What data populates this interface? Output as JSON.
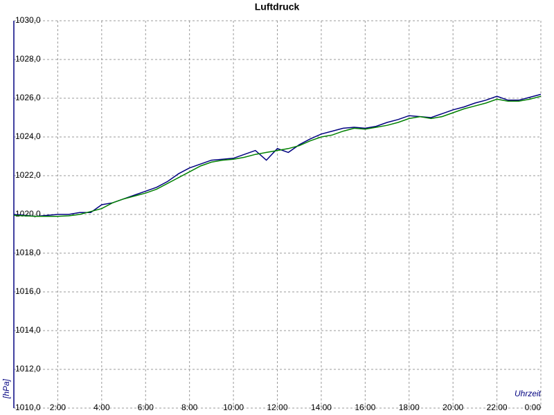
{
  "chart_data": {
    "type": "line",
    "title": "Luftdruck",
    "y_label": "[hPa]",
    "x_label": "Uhrzeit",
    "x": [
      0,
      0.5,
      1,
      1.5,
      2,
      2.5,
      3,
      3.5,
      4,
      4.5,
      5,
      5.5,
      6,
      6.5,
      7,
      7.5,
      8,
      8.5,
      9,
      9.5,
      10,
      10.5,
      11,
      11.5,
      12,
      12.5,
      13,
      13.5,
      14,
      14.5,
      15,
      15.5,
      16,
      16.5,
      17,
      17.5,
      18,
      18.5,
      19,
      19.5,
      20,
      20.5,
      21,
      21.5,
      22,
      22.5,
      23,
      23.5,
      24
    ],
    "series": [
      {
        "color": "#000080",
        "values": [
          1020.0,
          1019.95,
          1019.9,
          1019.95,
          1020.0,
          1020.0,
          1020.1,
          1020.1,
          1020.5,
          1020.6,
          1020.8,
          1021.0,
          1021.2,
          1021.4,
          1021.7,
          1022.1,
          1022.4,
          1022.6,
          1022.8,
          1022.85,
          1022.9,
          1023.1,
          1023.3,
          1022.8,
          1023.4,
          1023.2,
          1023.6,
          1023.9,
          1024.15,
          1024.3,
          1024.45,
          1024.5,
          1024.45,
          1024.55,
          1024.75,
          1024.9,
          1025.1,
          1025.05,
          1025.0,
          1025.2,
          1025.4,
          1025.55,
          1025.75,
          1025.9,
          1026.1,
          1025.9,
          1025.9,
          1026.05,
          1026.2
        ]
      },
      {
        "color": "#008000",
        "values": [
          1019.95,
          1019.93,
          1019.9,
          1019.9,
          1019.9,
          1019.93,
          1020.0,
          1020.15,
          1020.3,
          1020.6,
          1020.8,
          1020.95,
          1021.1,
          1021.3,
          1021.6,
          1021.9,
          1022.2,
          1022.5,
          1022.7,
          1022.8,
          1022.85,
          1022.95,
          1023.1,
          1023.2,
          1023.3,
          1023.4,
          1023.55,
          1023.8,
          1024.0,
          1024.1,
          1024.3,
          1024.45,
          1024.4,
          1024.5,
          1024.6,
          1024.75,
          1024.95,
          1025.05,
          1024.95,
          1025.05,
          1025.25,
          1025.45,
          1025.6,
          1025.75,
          1025.95,
          1025.85,
          1025.85,
          1025.95,
          1026.1
        ]
      }
    ],
    "xlim": [
      0,
      24
    ],
    "xticks": [
      {
        "value": 2,
        "label": "2:00"
      },
      {
        "value": 4,
        "label": "4:00"
      },
      {
        "value": 6,
        "label": "6:00"
      },
      {
        "value": 8,
        "label": "8:00"
      },
      {
        "value": 10,
        "label": "10:00"
      },
      {
        "value": 12,
        "label": "12:00"
      },
      {
        "value": 14,
        "label": "14:00"
      },
      {
        "value": 16,
        "label": "16:00"
      },
      {
        "value": 18,
        "label": "18:00"
      },
      {
        "value": 20,
        "label": "20:00"
      },
      {
        "value": 22,
        "label": "22:00"
      },
      {
        "value": 24,
        "label": "0:00"
      }
    ],
    "ylim": [
      1010,
      1030
    ],
    "yticks": [
      {
        "value": 1010,
        "label": "1010,0"
      },
      {
        "value": 1012,
        "label": "1012,0"
      },
      {
        "value": 1014,
        "label": "1014,0"
      },
      {
        "value": 1016,
        "label": "1016,0"
      },
      {
        "value": 1018,
        "label": "1018,0"
      },
      {
        "value": 1020,
        "label": "1020,0"
      },
      {
        "value": 1022,
        "label": "1022,0"
      },
      {
        "value": 1024,
        "label": "1024,0"
      },
      {
        "value": 1026,
        "label": "1026,0"
      },
      {
        "value": 1028,
        "label": "1028,0"
      },
      {
        "value": 1030,
        "label": "1030,0"
      }
    ],
    "grid": true
  }
}
